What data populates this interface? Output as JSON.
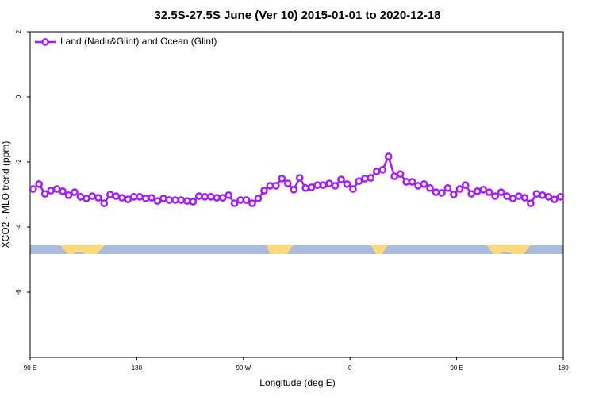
{
  "chart_data": {
    "type": "line",
    "title": "32.5S-27.5S June (Ver 10)   2015-01-01 to 2020-12-18",
    "xlabel": "Longitude (deg E)",
    "ylabel": "XCO2 - MLO trend (ppm)",
    "xlim": [
      90,
      540
    ],
    "xticks": [
      {
        "value": 90,
        "label": "90 E"
      },
      {
        "value": 180,
        "label": "180"
      },
      {
        "value": 270,
        "label": "90 W"
      },
      {
        "value": 360,
        "label": "0"
      },
      {
        "value": 450,
        "label": "90 E"
      },
      {
        "value": 540,
        "label": "180"
      }
    ],
    "ylim": [
      -8,
      2
    ],
    "yticks": [
      2,
      0,
      -2,
      -4,
      -6
    ],
    "legend": "top-left",
    "x": [
      92.5,
      97.5,
      102.5,
      107.5,
      112.5,
      117.5,
      122.5,
      127.5,
      132.5,
      137.5,
      142.5,
      147.5,
      152.5,
      157.5,
      162.5,
      167.5,
      172.5,
      177.5,
      182.5,
      187.5,
      192.5,
      197.5,
      202.5,
      207.5,
      212.5,
      217.5,
      222.5,
      227.5,
      232.5,
      237.5,
      242.5,
      247.5,
      252.5,
      257.5,
      262.5,
      267.5,
      272.5,
      277.5,
      282.5,
      287.5,
      292.5,
      297.5,
      302.5,
      307.5,
      312.5,
      317.5,
      322.5,
      327.5,
      332.5,
      337.5,
      342.5,
      347.5,
      352.5,
      357.5,
      362.5,
      367.5,
      372.5,
      377.5,
      382.5,
      387.5,
      392.5,
      397.5,
      402.5,
      407.5,
      412.5,
      417.5,
      422.5,
      427.5,
      432.5,
      437.5,
      442.5,
      447.5,
      452.5,
      457.5,
      462.5,
      467.5,
      472.5,
      477.5,
      482.5,
      487.5,
      492.5,
      497.5,
      502.5,
      507.5,
      512.5,
      517.5,
      522.5,
      527.5,
      532.5,
      537.5
    ],
    "series": [
      {
        "name": "Land (Nadir&Glint) and Ocean (Glint)",
        "color": "#a020f0",
        "values": [
          -2.83,
          -2.68,
          -2.98,
          -2.88,
          -2.83,
          -2.9,
          -3.02,
          -2.93,
          -3.07,
          -3.12,
          -3.05,
          -3.1,
          -3.27,
          -3.0,
          -3.05,
          -3.1,
          -3.15,
          -3.07,
          -3.07,
          -3.12,
          -3.1,
          -3.2,
          -3.12,
          -3.17,
          -3.17,
          -3.17,
          -3.2,
          -3.22,
          -3.05,
          -3.07,
          -3.07,
          -3.1,
          -3.1,
          -3.02,
          -3.27,
          -3.17,
          -3.17,
          -3.27,
          -3.12,
          -2.88,
          -2.73,
          -2.73,
          -2.51,
          -2.66,
          -2.85,
          -2.49,
          -2.8,
          -2.78,
          -2.71,
          -2.71,
          -2.66,
          -2.73,
          -2.54,
          -2.68,
          -2.83,
          -2.59,
          -2.51,
          -2.49,
          -2.29,
          -2.24,
          -1.83,
          -2.44,
          -2.37,
          -2.61,
          -2.61,
          -2.73,
          -2.68,
          -2.8,
          -2.93,
          -2.95,
          -2.8,
          -3.0,
          -2.83,
          -2.71,
          -2.98,
          -2.9,
          -2.85,
          -2.93,
          -3.05,
          -2.93,
          -3.05,
          -3.12,
          -3.05,
          -3.1,
          -3.27,
          -2.98,
          -3.02,
          -3.07,
          -3.15,
          -3.07
        ]
      }
    ]
  }
}
